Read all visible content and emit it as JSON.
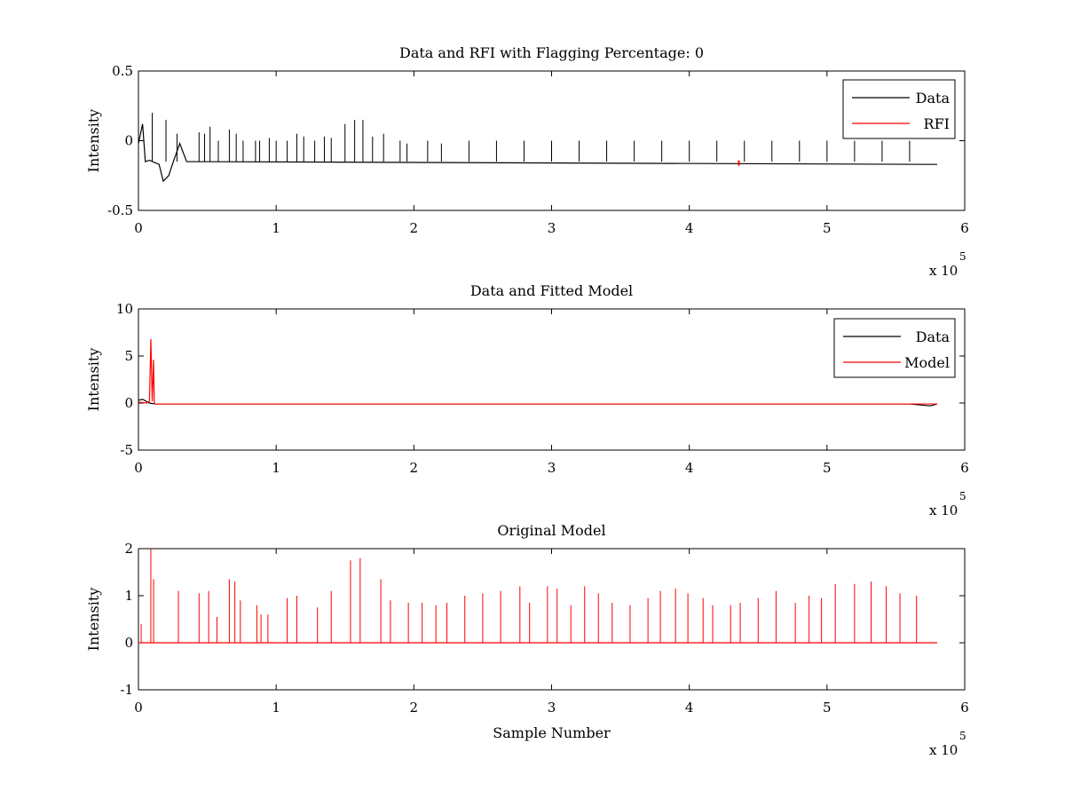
{
  "chart_data": [
    {
      "type": "line",
      "title": "Data and RFI with Flagging Percentage: 0",
      "xlabel": "",
      "ylabel": "Intensity",
      "xlim": [
        0,
        600000
      ],
      "ylim": [
        -0.5,
        0.5
      ],
      "x_ticks": [
        "0",
        "1",
        "2",
        "3",
        "4",
        "5",
        "6"
      ],
      "y_ticks": [
        "0.5",
        "0",
        "-0.5"
      ],
      "x_exponent_label": "x 10",
      "x_exponent": "5",
      "grid": false,
      "legend_position": "top-right",
      "colors": {
        "Data": "#000000",
        "RFI": "#ff0000"
      },
      "series": [
        {
          "name": "Data",
          "baseline": -0.15,
          "x": [
            0,
            3000,
            5000,
            8000,
            15000,
            18000,
            22000,
            25000,
            30000,
            35000,
            40000,
            42000,
            580000
          ],
          "y": [
            -0.02,
            0.12,
            -0.15,
            -0.14,
            -0.17,
            -0.29,
            -0.25,
            -0.16,
            -0.02,
            -0.15,
            -0.15,
            -0.15,
            -0.17
          ],
          "spikes": [
            {
              "x": 10000,
              "y": 0.2
            },
            {
              "x": 20000,
              "y": 0.15
            },
            {
              "x": 28000,
              "y": 0.05
            },
            {
              "x": 44000,
              "y": 0.06
            },
            {
              "x": 48000,
              "y": 0.05
            },
            {
              "x": 52000,
              "y": 0.1
            },
            {
              "x": 58000,
              "y": 0.0
            },
            {
              "x": 66000,
              "y": 0.08
            },
            {
              "x": 71000,
              "y": 0.05
            },
            {
              "x": 76000,
              "y": 0.0
            },
            {
              "x": 85000,
              "y": 0.0
            },
            {
              "x": 88000,
              "y": 0.0
            },
            {
              "x": 95000,
              "y": 0.02
            },
            {
              "x": 100000,
              "y": 0.0
            },
            {
              "x": 108000,
              "y": 0.0
            },
            {
              "x": 115000,
              "y": 0.05
            },
            {
              "x": 120000,
              "y": 0.03
            },
            {
              "x": 128000,
              "y": 0.0
            },
            {
              "x": 135000,
              "y": 0.03
            },
            {
              "x": 140000,
              "y": 0.02
            },
            {
              "x": 150000,
              "y": 0.12
            },
            {
              "x": 157000,
              "y": 0.15
            },
            {
              "x": 163000,
              "y": 0.15
            },
            {
              "x": 170000,
              "y": 0.03
            },
            {
              "x": 178000,
              "y": 0.05
            },
            {
              "x": 190000,
              "y": 0.0
            },
            {
              "x": 195000,
              "y": -0.02
            },
            {
              "x": 210000,
              "y": 0.0
            },
            {
              "x": 220000,
              "y": -0.02
            },
            {
              "x": 240000,
              "y": 0.0
            },
            {
              "x": 260000,
              "y": 0.0
            },
            {
              "x": 280000,
              "y": 0.0
            },
            {
              "x": 300000,
              "y": 0.0
            },
            {
              "x": 320000,
              "y": 0.0
            },
            {
              "x": 340000,
              "y": 0.0
            },
            {
              "x": 360000,
              "y": 0.0
            },
            {
              "x": 380000,
              "y": 0.0
            },
            {
              "x": 400000,
              "y": 0.0
            },
            {
              "x": 420000,
              "y": 0.0
            },
            {
              "x": 440000,
              "y": 0.0
            },
            {
              "x": 460000,
              "y": 0.0
            },
            {
              "x": 480000,
              "y": 0.0
            },
            {
              "x": 500000,
              "y": 0.0
            },
            {
              "x": 520000,
              "y": 0.0
            },
            {
              "x": 540000,
              "y": 0.0
            },
            {
              "x": 560000,
              "y": 0.0
            }
          ]
        },
        {
          "name": "RFI",
          "x": [
            436000
          ],
          "y": [
            -0.16
          ]
        }
      ]
    },
    {
      "type": "line",
      "title": "Data and Fitted Model",
      "xlabel": "",
      "ylabel": "Intensity",
      "xlim": [
        0,
        600000
      ],
      "ylim": [
        -5,
        10
      ],
      "x_ticks": [
        "0",
        "1",
        "2",
        "3",
        "4",
        "5",
        "6"
      ],
      "y_ticks": [
        "10",
        "5",
        "0",
        "-5"
      ],
      "x_exponent_label": "x 10",
      "x_exponent": "5",
      "grid": false,
      "legend_position": "top-right",
      "colors": {
        "Data": "#000000",
        "Model": "#ff0000"
      },
      "series": [
        {
          "name": "Data",
          "x": [
            0,
            3000,
            8000,
            12000,
            20000,
            560000,
            575000,
            580000
          ],
          "y": [
            0.3,
            0.4,
            0.0,
            -0.1,
            -0.1,
            -0.1,
            -0.3,
            -0.1
          ]
        },
        {
          "name": "Model",
          "x": [
            0,
            6000,
            8000,
            9000,
            10000,
            11000,
            11500,
            12000,
            580000
          ],
          "y": [
            0.1,
            0.0,
            0.2,
            6.8,
            0.2,
            4.6,
            0.0,
            -0.1,
            -0.1
          ]
        }
      ]
    },
    {
      "type": "line",
      "title": "Original Model",
      "xlabel": "Sample Number",
      "ylabel": "Intensity",
      "xlim": [
        0,
        600000
      ],
      "ylim": [
        -1,
        2
      ],
      "x_ticks": [
        "0",
        "1",
        "2",
        "3",
        "4",
        "5",
        "6"
      ],
      "y_ticks": [
        "2",
        "1",
        "0",
        "-1"
      ],
      "x_exponent_label": "x 10",
      "x_exponent": "5",
      "grid": false,
      "colors": {
        "Model": "#ff0000"
      },
      "series": [
        {
          "baseline": 0,
          "x_end": 580000,
          "spikes": [
            {
              "x": 2000,
              "y": 0.4
            },
            {
              "x": 9000,
              "y": 2.0
            },
            {
              "x": 11000,
              "y": 1.35
            },
            {
              "x": 29000,
              "y": 1.1
            },
            {
              "x": 44000,
              "y": 1.05
            },
            {
              "x": 51000,
              "y": 1.1
            },
            {
              "x": 57000,
              "y": 0.55
            },
            {
              "x": 66000,
              "y": 1.35
            },
            {
              "x": 70000,
              "y": 1.3
            },
            {
              "x": 74000,
              "y": 0.9
            },
            {
              "x": 86000,
              "y": 0.8
            },
            {
              "x": 89000,
              "y": 0.6
            },
            {
              "x": 94000,
              "y": 0.6
            },
            {
              "x": 108000,
              "y": 0.95
            },
            {
              "x": 115000,
              "y": 1.0
            },
            {
              "x": 130000,
              "y": 0.75
            },
            {
              "x": 140000,
              "y": 1.1
            },
            {
              "x": 154000,
              "y": 1.75
            },
            {
              "x": 161000,
              "y": 1.8
            },
            {
              "x": 176000,
              "y": 1.35
            },
            {
              "x": 183000,
              "y": 0.9
            },
            {
              "x": 196000,
              "y": 0.85
            },
            {
              "x": 206000,
              "y": 0.85
            },
            {
              "x": 216000,
              "y": 0.8
            },
            {
              "x": 224000,
              "y": 0.85
            },
            {
              "x": 237000,
              "y": 1.0
            },
            {
              "x": 250000,
              "y": 1.05
            },
            {
              "x": 263000,
              "y": 1.1
            },
            {
              "x": 277000,
              "y": 1.2
            },
            {
              "x": 284000,
              "y": 0.85
            },
            {
              "x": 297000,
              "y": 1.2
            },
            {
              "x": 304000,
              "y": 1.15
            },
            {
              "x": 314000,
              "y": 0.8
            },
            {
              "x": 324000,
              "y": 1.2
            },
            {
              "x": 334000,
              "y": 1.05
            },
            {
              "x": 344000,
              "y": 0.85
            },
            {
              "x": 357000,
              "y": 0.8
            },
            {
              "x": 370000,
              "y": 0.95
            },
            {
              "x": 379000,
              "y": 1.1
            },
            {
              "x": 390000,
              "y": 1.15
            },
            {
              "x": 399000,
              "y": 1.05
            },
            {
              "x": 410000,
              "y": 0.95
            },
            {
              "x": 417000,
              "y": 0.8
            },
            {
              "x": 430000,
              "y": 0.8
            },
            {
              "x": 437000,
              "y": 0.85
            },
            {
              "x": 450000,
              "y": 0.95
            },
            {
              "x": 463000,
              "y": 1.1
            },
            {
              "x": 477000,
              "y": 0.85
            },
            {
              "x": 487000,
              "y": 1.0
            },
            {
              "x": 496000,
              "y": 0.95
            },
            {
              "x": 506000,
              "y": 1.25
            },
            {
              "x": 520000,
              "y": 1.25
            },
            {
              "x": 532000,
              "y": 1.3
            },
            {
              "x": 543000,
              "y": 1.2
            },
            {
              "x": 553000,
              "y": 1.05
            },
            {
              "x": 565000,
              "y": 1.0
            }
          ]
        }
      ]
    }
  ],
  "legends": [
    [
      "Data",
      "RFI"
    ],
    [
      "Data",
      "Model"
    ]
  ]
}
